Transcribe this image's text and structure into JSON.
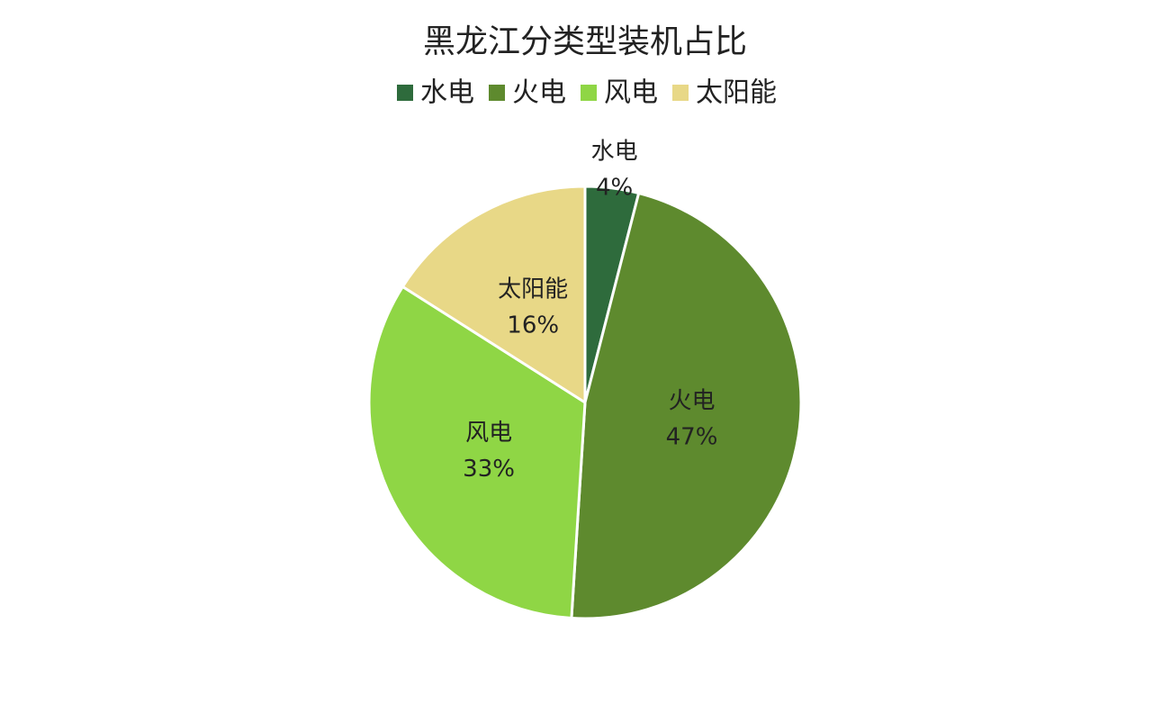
{
  "chart_data": {
    "type": "pie",
    "title": "黑龙江分类型装机占比",
    "categories": [
      "水电",
      "火电",
      "风电",
      "太阳能"
    ],
    "values": [
      4,
      47,
      33,
      16
    ],
    "value_labels": [
      "4%",
      "47%",
      "33%",
      "16%"
    ],
    "colors": [
      "#2e6b3c",
      "#5e8a2e",
      "#8fd645",
      "#e8d887"
    ],
    "legend": "top"
  }
}
